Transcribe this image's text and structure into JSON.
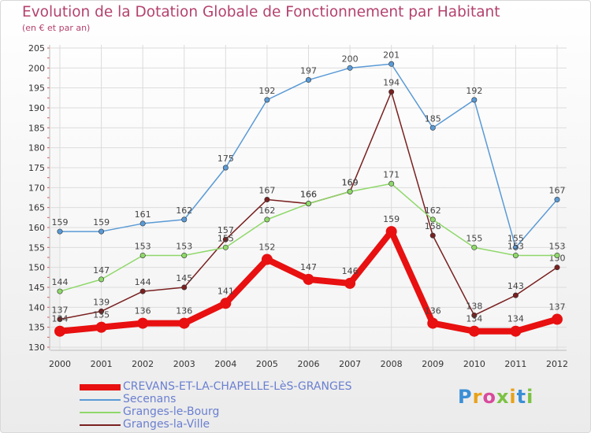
{
  "title": "Evolution de la Dotation Globale de Fonctionnement par Habitant",
  "subtitle": "(en € et par an)",
  "logo": "Proxiti",
  "chart_data": {
    "type": "line",
    "title": "Evolution de la Dotation Globale de Fonctionnement par Habitant",
    "subtitle": "(en € et par an)",
    "categories": [
      "2000",
      "2001",
      "2002",
      "2003",
      "2004",
      "2005",
      "2006",
      "2007",
      "2008",
      "2009",
      "2010",
      "2011",
      "2012"
    ],
    "ylim": [
      130,
      205
    ],
    "yticks": [
      130,
      135,
      140,
      145,
      150,
      155,
      160,
      165,
      170,
      175,
      180,
      185,
      190,
      195,
      200,
      205
    ],
    "grid": true,
    "legend": "bottom-left",
    "series": [
      {
        "name": "CREVANS-ET-LA-CHAPELLE-LèS-GRANGES",
        "color": "#e81010",
        "values": [
          134,
          135,
          136,
          136,
          141,
          152,
          147,
          146,
          159,
          136,
          134,
          134,
          137
        ]
      },
      {
        "name": "Secenans",
        "color": "#5a9ad6",
        "values": [
          159,
          159,
          161,
          162,
          175,
          192,
          197,
          200,
          201,
          185,
          192,
          155,
          167
        ]
      },
      {
        "name": "Granges-le-Bourg",
        "color": "#8fd86a",
        "values": [
          144,
          147,
          153,
          153,
          155,
          162,
          166,
          169,
          171,
          162,
          155,
          153,
          153
        ]
      },
      {
        "name": "Granges-la-Ville",
        "color": "#7a2020",
        "values": [
          137,
          139,
          144,
          145,
          157,
          167,
          166,
          169,
          194,
          158,
          138,
          143,
          150
        ]
      }
    ]
  }
}
